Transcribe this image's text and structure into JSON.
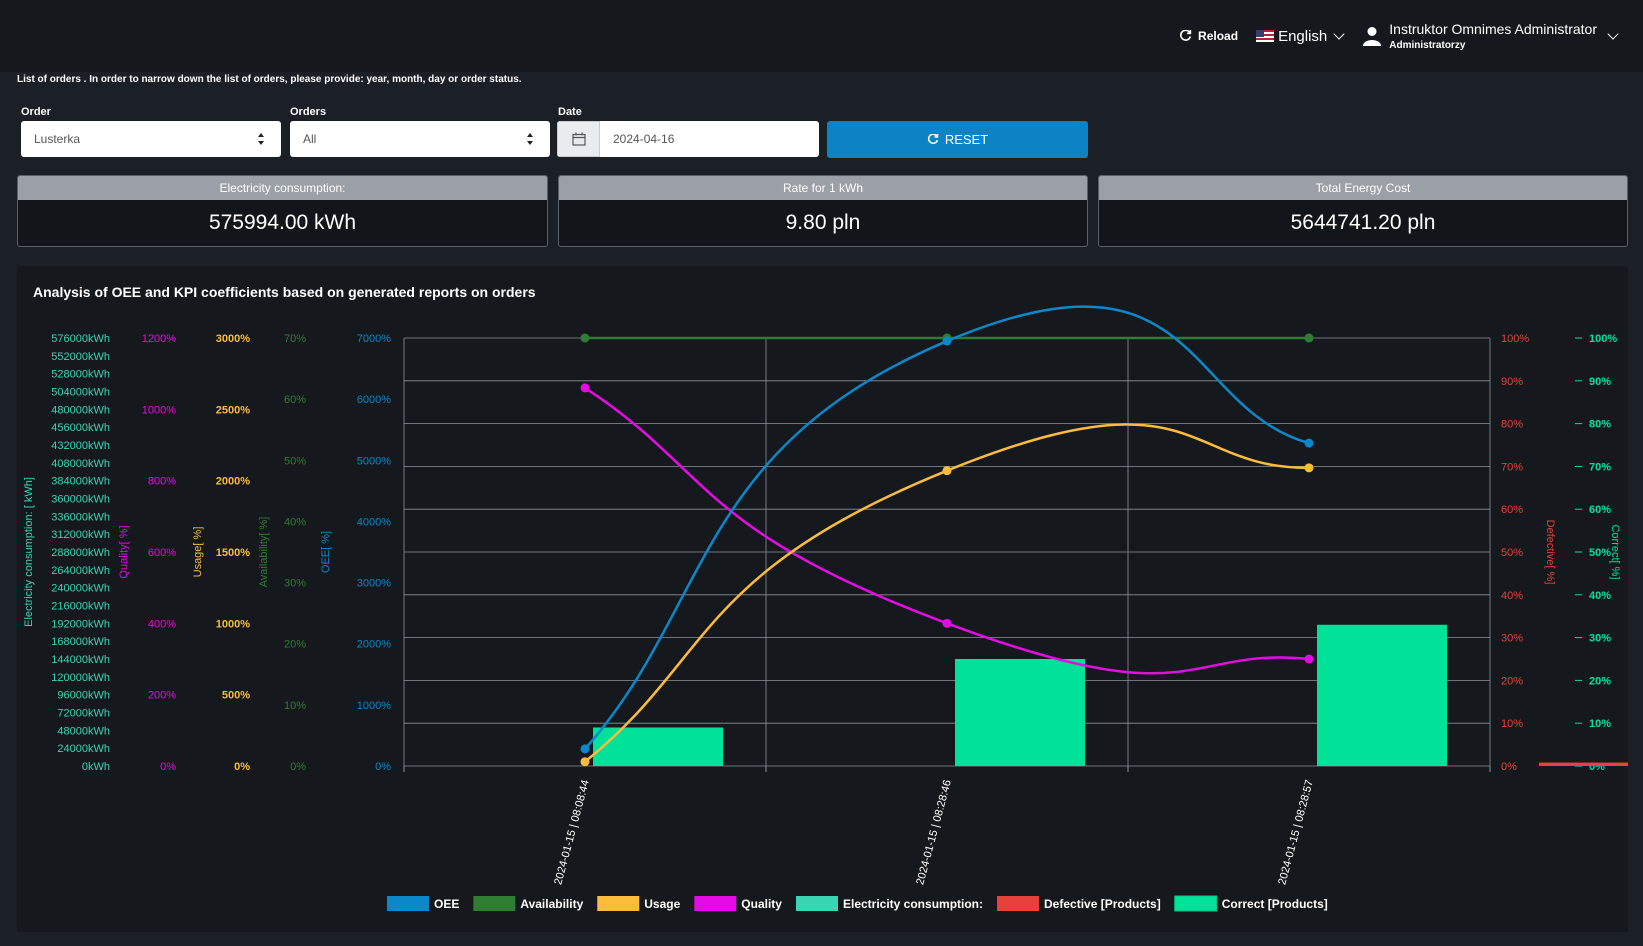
{
  "topbar": {
    "reload_label": "Reload",
    "language": "English",
    "user_name": "Instruktor Omnimes Administrator",
    "user_role": "Administratorzy"
  },
  "info_text": "List of orders . In order to narrow down the list of orders, please provide: year, month, day or order status.",
  "filters": {
    "order_label": "Order",
    "order_value": "Lusterka",
    "orders_label": "Orders",
    "orders_value": "All",
    "date_label": "Date",
    "date_value": "2024-04-16",
    "reset_label": "RESET"
  },
  "kpis": [
    {
      "title": "Electricity consumption:",
      "value": "575994.00 kWh"
    },
    {
      "title": "Rate for 1 kWh",
      "value": "9.80 pln"
    },
    {
      "title": "Total Energy Cost",
      "value": "5644741.20 pln"
    }
  ],
  "colors": {
    "oee": "#0b88c9",
    "availability": "#2e7d32",
    "usage": "#fbbc3c",
    "quality": "#e40be4",
    "electricity": "#3ad6b4",
    "defective": "#e8413a",
    "correct": "#00e29a"
  },
  "chart_title": "Analysis of OEE and KPI coefficients based on generated reports on orders",
  "chart_data": {
    "type": "line",
    "x": [
      "2024-01-15 | 08:08:44",
      "2024-01-15 | 08:28:46",
      "2024-01-15 | 08:28:57"
    ],
    "series": [
      {
        "name": "OEE",
        "type": "line",
        "axis": "OEE[ %]",
        "values": [
          280,
          6950,
          5280
        ]
      },
      {
        "name": "Availability",
        "type": "line",
        "axis": "Availability[ %]",
        "values": [
          70,
          70,
          70
        ]
      },
      {
        "name": "Usage",
        "type": "line",
        "axis": "Usage[ %]",
        "values": [
          30,
          2070,
          2090
        ]
      },
      {
        "name": "Quality",
        "type": "line",
        "axis": "Quality[ %]",
        "values": [
          1060,
          400,
          300
        ]
      },
      {
        "name": "Electricity consumption:",
        "type": "bar",
        "axis": "Electricity consumption: [ kWh]",
        "values": [
          0,
          0,
          0
        ]
      },
      {
        "name": "Defective [Products]",
        "type": "bar",
        "axis": "Defective[ %]",
        "values": [
          0,
          0,
          0.8
        ]
      },
      {
        "name": "Correct [Products]",
        "type": "bar",
        "axis": "Correct[ %]",
        "values": [
          9,
          25,
          33
        ]
      }
    ],
    "axes": [
      {
        "name": "Electricity consumption: [ kWh]",
        "side": "left",
        "min": 0,
        "max": 576000,
        "step": 24000,
        "suffix": "kWh",
        "color": "#3ad6b4"
      },
      {
        "name": "Quality[ %]",
        "side": "left",
        "min": 0,
        "max": 1200,
        "step": 200,
        "suffix": "%",
        "color": "#e40be4"
      },
      {
        "name": "Usage[ %]",
        "side": "left",
        "min": 0,
        "max": 3000,
        "step": 500,
        "suffix": "%",
        "color": "#fbbc3c"
      },
      {
        "name": "Availability[ %]",
        "side": "left",
        "min": 0,
        "max": 70,
        "step": 10,
        "suffix": "%",
        "color": "#2e7d32"
      },
      {
        "name": "OEE[ %]",
        "side": "left",
        "min": 0,
        "max": 7000,
        "step": 1000,
        "suffix": "%",
        "color": "#0b88c9"
      },
      {
        "name": "Defective[ %]",
        "side": "right",
        "min": 0,
        "max": 100,
        "step": 10,
        "suffix": "%",
        "color": "#e8413a"
      },
      {
        "name": "Correct[ %]",
        "side": "right",
        "min": 0,
        "max": 100,
        "step": 10,
        "suffix": "%",
        "color": "#00e29a"
      }
    ],
    "legend": [
      "OEE",
      "Availability",
      "Usage",
      "Quality",
      "Electricity consumption:",
      "Defective [Products]",
      "Correct [Products]"
    ],
    "legend_position": "bottom",
    "grid": true
  }
}
